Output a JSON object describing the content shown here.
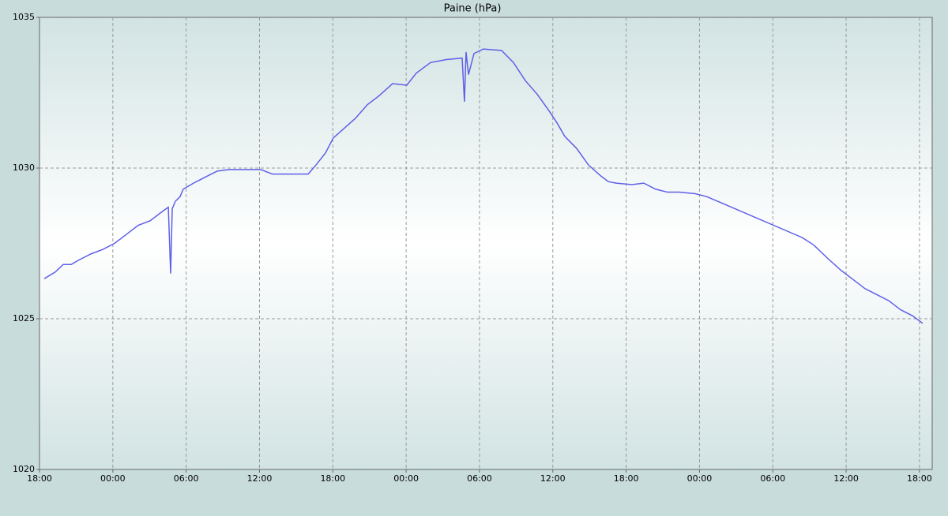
{
  "chart_data": {
    "type": "line",
    "title": "Paine (hPa)",
    "x": [
      0.39,
      1.29,
      1.94,
      2.59,
      3.23,
      4.2,
      5.17,
      6.14,
      7.11,
      8.08,
      9.05,
      10.02,
      10.54,
      10.73,
      10.86,
      11.12,
      11.5,
      11.76,
      12.6,
      13.57,
      14.54,
      15.51,
      16.8,
      18.1,
      19.07,
      20.04,
      21.98,
      22.62,
      23.4,
      24.04,
      24.88,
      25.85,
      26.82,
      27.79,
      28.89,
      30.05,
      30.83,
      31.99,
      33.29,
      34.58,
      34.77,
      34.9,
      35.1,
      35.55,
      36.32,
      37.81,
      38.78,
      39.75,
      40.72,
      41.69,
      42.34,
      42.98,
      43.95,
      44.92,
      45.89,
      46.54,
      47.18,
      48.47,
      49.44,
      50.41,
      51.38,
      52.35,
      53.65,
      54.61,
      62.37,
      63.34,
      64.63,
      65.6,
      66.57,
      67.54,
      68.51,
      69.48,
      70.45,
      71.42,
      72.26
    ],
    "series": [
      {
        "color": "#5f5fe8",
        "values": [
          1026.33,
          1026.55,
          1026.8,
          1026.8,
          1026.95,
          1027.15,
          1027.3,
          1027.5,
          1027.8,
          1028.1,
          1028.25,
          1028.55,
          1028.7,
          1026.5,
          1028.65,
          1028.9,
          1029.05,
          1029.3,
          1029.5,
          1029.7,
          1029.9,
          1029.95,
          1029.95,
          1029.95,
          1029.8,
          1029.8,
          1029.8,
          1030.1,
          1030.5,
          1031.0,
          1031.3,
          1031.65,
          1032.1,
          1032.4,
          1032.8,
          1032.75,
          1033.15,
          1033.5,
          1033.6,
          1033.65,
          1032.2,
          1033.85,
          1033.1,
          1033.8,
          1033.95,
          1033.9,
          1033.5,
          1032.9,
          1032.45,
          1031.9,
          1031.5,
          1031.05,
          1030.65,
          1030.1,
          1029.75,
          1029.55,
          1029.5,
          1029.45,
          1029.5,
          1029.3,
          1029.2,
          1029.2,
          1029.15,
          1029.05,
          1027.7,
          1027.45,
          1026.95,
          1026.6,
          1026.3,
          1026.0,
          1025.8,
          1025.6,
          1025.3,
          1025.1,
          1024.85
        ]
      }
    ],
    "xlim": [
      0,
      73.04
    ],
    "xticks": [
      {
        "value": 0,
        "label": "18:00"
      },
      {
        "value": 6,
        "label": "00:00"
      },
      {
        "value": 12,
        "label": "06:00"
      },
      {
        "value": 18,
        "label": "12:00"
      },
      {
        "value": 24,
        "label": "18:00"
      },
      {
        "value": 30,
        "label": "00:00"
      },
      {
        "value": 36,
        "label": "06:00"
      },
      {
        "value": 42,
        "label": "12:00"
      },
      {
        "value": 48,
        "label": "18:00"
      },
      {
        "value": 54,
        "label": "00:00"
      },
      {
        "value": 60,
        "label": "06:00"
      },
      {
        "value": 66,
        "label": "12:00"
      },
      {
        "value": 72,
        "label": "18:00"
      }
    ],
    "ylim": [
      1020,
      1035
    ],
    "yticks": [
      1020,
      1025,
      1030,
      1035
    ],
    "grid": true
  }
}
